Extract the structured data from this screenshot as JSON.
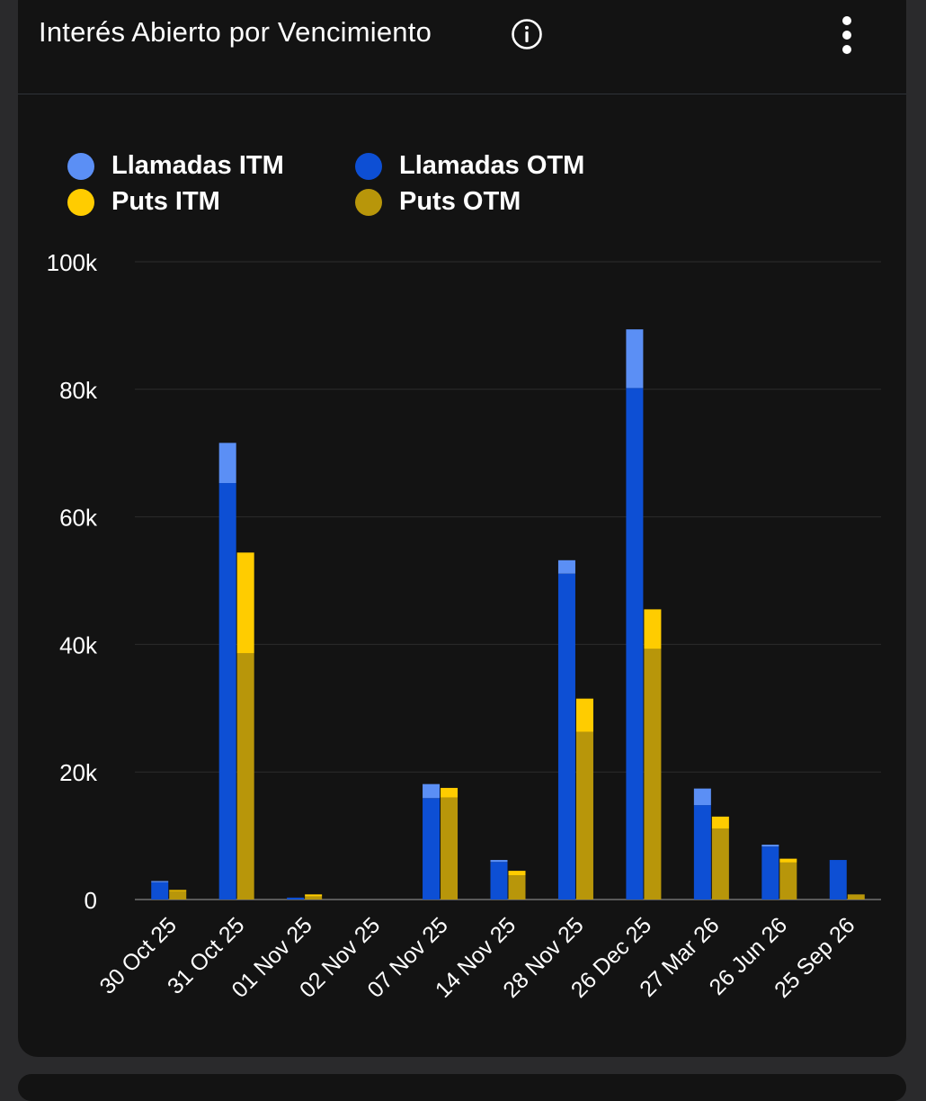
{
  "header": {
    "title": "Interés Abierto por Vencimiento",
    "info_icon": "info-circle-icon",
    "menu_icon": "more-vertical-icon"
  },
  "chart_data": {
    "type": "bar",
    "title": "Interés Abierto por Vencimiento",
    "categories": [
      "30 Oct 25",
      "31 Oct 25",
      "01 Nov 25",
      "02 Nov 25",
      "07 Nov 25",
      "14 Nov 25",
      "28 Nov 25",
      "26 Dec 25",
      "27 Mar 26",
      "26 Jun 26",
      "25 Sep 26"
    ],
    "stacked_groups": [
      {
        "group": "Llamadas",
        "stack": [
          "Llamadas OTM",
          "Llamadas ITM"
        ]
      },
      {
        "group": "Puts",
        "stack": [
          "Puts OTM",
          "Puts ITM"
        ]
      }
    ],
    "series": [
      {
        "name": "Llamadas ITM",
        "color": "#5b8ff5",
        "values": [
          200,
          6300,
          0,
          0,
          2200,
          300,
          2100,
          9200,
          2600,
          300,
          0
        ]
      },
      {
        "name": "Llamadas OTM",
        "color": "#0d4fd4",
        "values": [
          2700,
          65300,
          300,
          0,
          15900,
          5900,
          51100,
          80200,
          14800,
          8300,
          6200
        ]
      },
      {
        "name": "Puts ITM",
        "color": "#ffcc00",
        "values": [
          200,
          15800,
          300,
          0,
          1500,
          700,
          5200,
          6200,
          1900,
          600,
          0
        ]
      },
      {
        "name": "Puts OTM",
        "color": "#b8960a",
        "values": [
          1300,
          38600,
          500,
          0,
          16000,
          3800,
          26300,
          39300,
          11100,
          5800,
          800
        ]
      }
    ],
    "y_ticks": [
      "0",
      "20k",
      "40k",
      "60k",
      "80k",
      "100k"
    ],
    "ylim": [
      0,
      100000
    ],
    "grid": true,
    "legend_position": "top-left"
  }
}
